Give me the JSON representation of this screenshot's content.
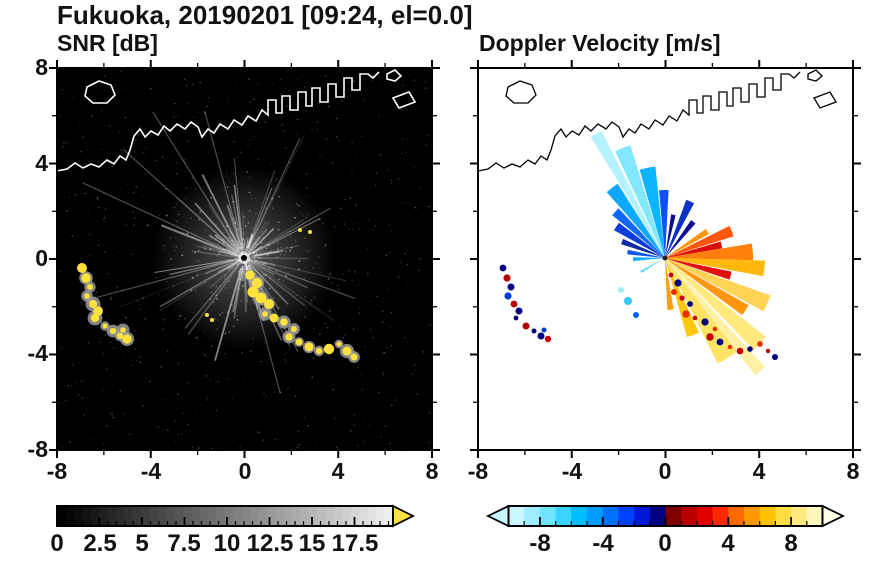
{
  "title": "Fukuoka, 20190201 [09:24, el=0.0]",
  "panels": {
    "snr": {
      "label": "SNR [dB]",
      "x_tick_labels": [
        "-8",
        "-4",
        "0",
        "4",
        "8"
      ],
      "y_tick_labels": [
        "8",
        "4",
        "0",
        "-4",
        "-8"
      ]
    },
    "velocity": {
      "label": "Doppler Velocity [m/s]",
      "x_tick_labels": [
        "-8",
        "-4",
        "0",
        "4",
        "8"
      ]
    }
  },
  "colorbars": {
    "snr": {
      "tick_labels": [
        "0",
        "2.5",
        "5",
        "7.5",
        "10",
        "12.5",
        "15",
        "17.5"
      ],
      "start_color": "#000000",
      "end_color": "#eeeeee",
      "overflow_arrow_color": "#ffe23c"
    },
    "velocity": {
      "tick_labels": [
        "-8",
        "-4",
        "0",
        "4",
        "8"
      ],
      "left_arrow_color": "#c8f8ff",
      "right_arrow_color": "#ffffe8",
      "cell_colors": [
        "#c8f8ff",
        "#9feeff",
        "#6fe4ff",
        "#38d4ff",
        "#00bcff",
        "#009cff",
        "#0070ff",
        "#0040ff",
        "#0018d8",
        "#000080",
        "#800000",
        "#b80000",
        "#e00000",
        "#ff2800",
        "#ff6a00",
        "#ff9700",
        "#ffc100",
        "#ffdc40",
        "#ffe97e",
        "#fff7b8"
      ]
    }
  },
  "colors": {
    "snr_background": "#000000",
    "velocity_background": "#ffffff",
    "coastline_snr": "#ffffff",
    "coastline_velocity": "#000000",
    "strong_echo_yellow": "#ffe23c",
    "axis": "#000000"
  },
  "chart_data": [
    {
      "type": "heatmap",
      "title": "SNR [dB]",
      "xlabel": "",
      "ylabel": "",
      "xlim": [
        -8,
        8
      ],
      "ylim": [
        -8,
        8
      ],
      "x_ticks": [
        -8,
        -4,
        0,
        4,
        8
      ],
      "y_ticks": [
        -8,
        -4,
        0,
        4,
        8
      ],
      "background": "black (low SNR)",
      "colorbar": {
        "range": [
          0,
          17.5
        ],
        "tick_values": [
          0,
          2.5,
          5,
          7.5,
          10,
          12.5,
          15,
          17.5
        ],
        "colormap": "black-to-white grayscale with yellow overflow arrow"
      },
      "annotations": [
        "radar located at origin (0,0) with bright radial clutter streaks in all directions",
        "white coastline of Hakata Bay across the upper half with harbor piers and small islands",
        "arc of strong yellow echoes (> 17.5 dB) near (-6.5,-0.5) down to (-5.5,-3.0)",
        "chain of strong yellow echoes from about (0.3,-0.8) curving down-right to (4.3,-4.2)"
      ]
    },
    {
      "type": "heatmap",
      "title": "Doppler Velocity [m/s]",
      "xlabel": "",
      "ylabel": "",
      "xlim": [
        -8,
        8
      ],
      "ylim": [
        -8,
        8
      ],
      "x_ticks": [
        -8,
        -4,
        0,
        4,
        8
      ],
      "y_ticks": [
        -8,
        -4,
        0,
        4,
        8
      ],
      "background": "white (no data)",
      "colorbar": {
        "range": [
          -10,
          10
        ],
        "tick_values": [
          -8,
          -4,
          0,
          4,
          8
        ],
        "colormap": "light cyan - blue - navy for negative; dark red - red - orange - yellow - pale yellow for positive"
      },
      "annotations": [
        "fan of radial velocities around radar at origin",
        "negative velocities (cyan/blue/navy) in the north-to-northwest sector, streaks out to ~4 km",
        "positive velocities (dark red/orange/yellow) in the east-to-southeast sector",
        "scattered navy/red point echoes matching the yellow SNR clusters at lower-left and lower-middle"
      ]
    }
  ]
}
